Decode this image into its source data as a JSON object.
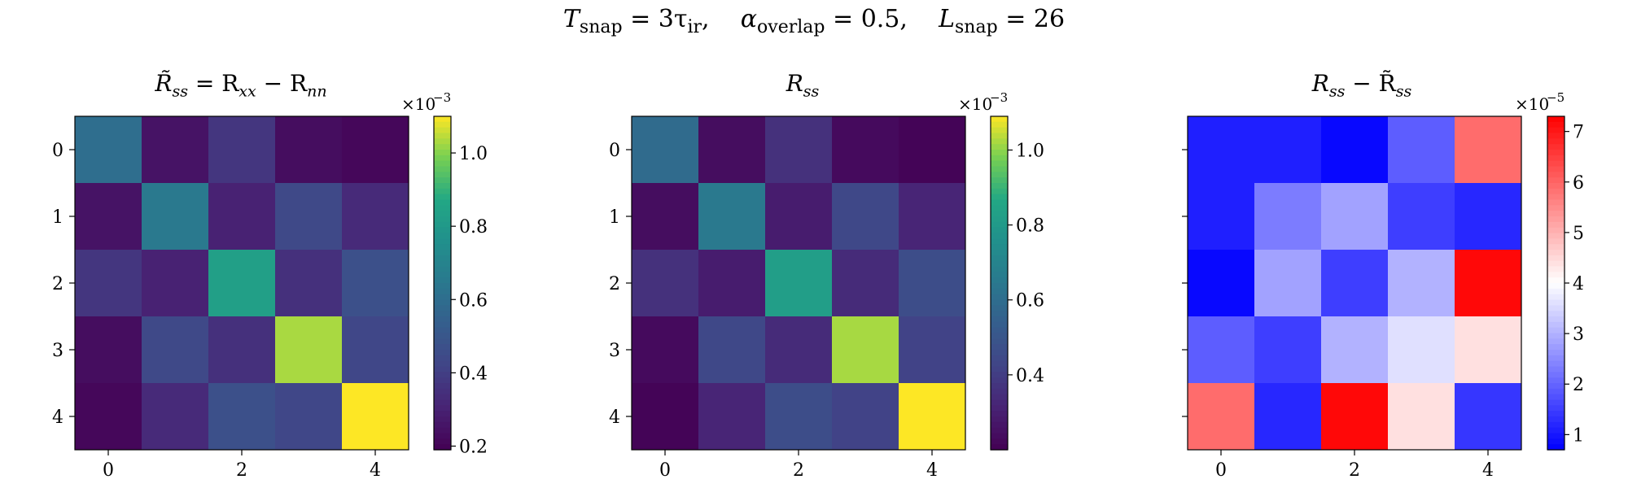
{
  "suptitle": {
    "t_label": "T",
    "t_sub": "snap",
    "t_val": "= 3τ",
    "t_val_sub": "ir",
    "sep1": ",",
    "alpha_label": "α",
    "alpha_sub": "overlap",
    "alpha_val": "= 0.5,",
    "l_label": "L",
    "l_sub": "snap",
    "l_val": "= 26"
  },
  "panels": [
    {
      "title_main": "R̃",
      "title_sub": "ss",
      "title_rest": " = R",
      "title_sub2": "xx",
      "title_rest2": " − R",
      "title_sub3": "nn"
    },
    {
      "title_main": "R",
      "title_sub": "ss"
    },
    {
      "title_main": "R",
      "title_sub": "ss",
      "title_rest": " − R̃",
      "title_sub2": "ss"
    }
  ],
  "chart_data": [
    {
      "type": "heatmap",
      "title": "R̃ss = Rxx − Rnn",
      "colormap": "viridis",
      "y_ticks": [
        "0",
        "1",
        "2",
        "3",
        "4"
      ],
      "x_ticks": [
        "0",
        "2",
        "4"
      ],
      "colorbar": {
        "scale_label": "×10",
        "scale_exp": "−3",
        "ticks": [
          "0.2",
          "0.4",
          "0.6",
          "0.8",
          "1.0"
        ],
        "tick_values": [
          0.2,
          0.4,
          0.6,
          0.8,
          1.0
        ],
        "vmin": 0.19,
        "vmax": 1.1
      },
      "values": [
        [
          0.6,
          0.25,
          0.37,
          0.23,
          0.21
        ],
        [
          0.25,
          0.65,
          0.3,
          0.44,
          0.33
        ],
        [
          0.37,
          0.3,
          0.83,
          0.35,
          0.47
        ],
        [
          0.23,
          0.44,
          0.35,
          1.03,
          0.43
        ],
        [
          0.21,
          0.33,
          0.47,
          0.43,
          1.1
        ]
      ]
    },
    {
      "type": "heatmap",
      "title": "Rss",
      "colormap": "viridis",
      "y_ticks": [
        "0",
        "1",
        "2",
        "3",
        "4"
      ],
      "x_ticks": [
        "0",
        "2",
        "4"
      ],
      "colorbar": {
        "scale_label": "×10",
        "scale_exp": "−3",
        "ticks": [
          "0.4",
          "0.6",
          "0.8",
          "1.0"
        ],
        "tick_values": [
          0.4,
          0.6,
          0.8,
          1.0
        ],
        "vmin": 0.2,
        "vmax": 1.09
      },
      "values": [
        [
          0.59,
          0.24,
          0.36,
          0.23,
          0.21
        ],
        [
          0.24,
          0.65,
          0.29,
          0.44,
          0.32
        ],
        [
          0.36,
          0.29,
          0.82,
          0.34,
          0.46
        ],
        [
          0.23,
          0.44,
          0.34,
          1.02,
          0.42
        ],
        [
          0.21,
          0.32,
          0.46,
          0.42,
          1.09
        ]
      ]
    },
    {
      "type": "heatmap",
      "title": "Rss − R̃ss",
      "colormap": "bwr",
      "y_ticks": [
        "",
        "",
        "",
        "",
        ""
      ],
      "x_ticks": [
        "0",
        "2",
        "4"
      ],
      "colorbar": {
        "scale_label": "×10",
        "scale_exp": "−5",
        "ticks": [
          "1",
          "2",
          "3",
          "4",
          "5",
          "6",
          "7"
        ],
        "tick_values": [
          1,
          2,
          3,
          4,
          5,
          6,
          7
        ],
        "vmin": 0.7,
        "vmax": 7.3
      },
      "values": [
        [
          1.1,
          1.1,
          0.8,
          1.9,
          5.9
        ],
        [
          1.1,
          2.3,
          2.8,
          1.5,
          1.2
        ],
        [
          0.8,
          2.8,
          1.5,
          3.0,
          7.2
        ],
        [
          1.9,
          1.5,
          3.0,
          3.6,
          4.4
        ],
        [
          5.9,
          1.2,
          7.2,
          4.4,
          1.4
        ]
      ]
    }
  ]
}
